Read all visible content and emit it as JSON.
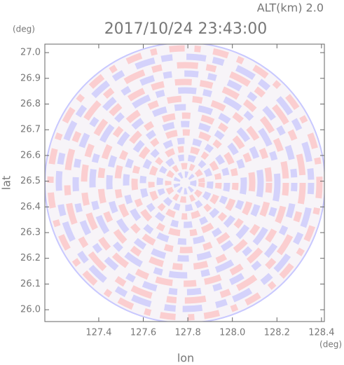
{
  "chart_data": {
    "type": "image",
    "title": "2017/10/24 23:43:00",
    "subtitle": "ALT(km) 2.0",
    "xlabel": "lon",
    "ylabel": "lat",
    "xunit": "(deg)",
    "yunit": "(deg)",
    "xlim": [
      127.158,
      128.413
    ],
    "ylim": [
      25.954,
      27.033
    ],
    "xticks": [
      127.4,
      127.6,
      127.8,
      {
        "value": 128,
        "label": "128.0"
      },
      128.2,
      128.4
    ],
    "yticks": [
      {
        "value": 26,
        "label": "26.0"
      },
      26.1,
      26.2,
      26.3,
      26.4,
      26.5,
      26.6,
      26.7,
      26.8,
      26.9,
      {
        "value": 27,
        "label": "27.0"
      }
    ]
  }
}
